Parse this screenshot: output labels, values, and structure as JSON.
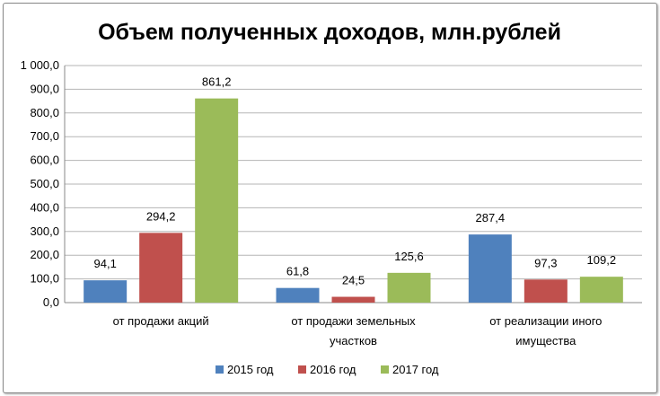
{
  "chart_data": {
    "type": "bar",
    "title": "Объем полученных доходов, млн.рублей",
    "categories": [
      [
        "от продажи акций"
      ],
      [
        "от продажи земельных",
        "участков"
      ],
      [
        "от реализации иного",
        "имущества"
      ]
    ],
    "series": [
      {
        "name": "2015 год",
        "color": "#4f81bd",
        "values": [
          94.1,
          61.8,
          287.4
        ],
        "labels": [
          "94,1",
          "61,8",
          "287,4"
        ]
      },
      {
        "name": "2016 год",
        "color": "#c0504d",
        "values": [
          294.2,
          24.5,
          97.3
        ],
        "labels": [
          "294,2",
          "24,5",
          "97,3"
        ]
      },
      {
        "name": "2017 год",
        "color": "#9bbb59",
        "values": [
          861.2,
          125.6,
          109.2
        ],
        "labels": [
          "861,2",
          "125,6",
          "109,2"
        ]
      }
    ],
    "ylim": [
      0,
      1000
    ],
    "yticks": [
      "0,0",
      "100,0",
      "200,0",
      "300,0",
      "400,0",
      "500,0",
      "600,0",
      "700,0",
      "800,0",
      "900,0",
      "1 000,0"
    ],
    "grid": true,
    "legend_position": "bottom"
  }
}
